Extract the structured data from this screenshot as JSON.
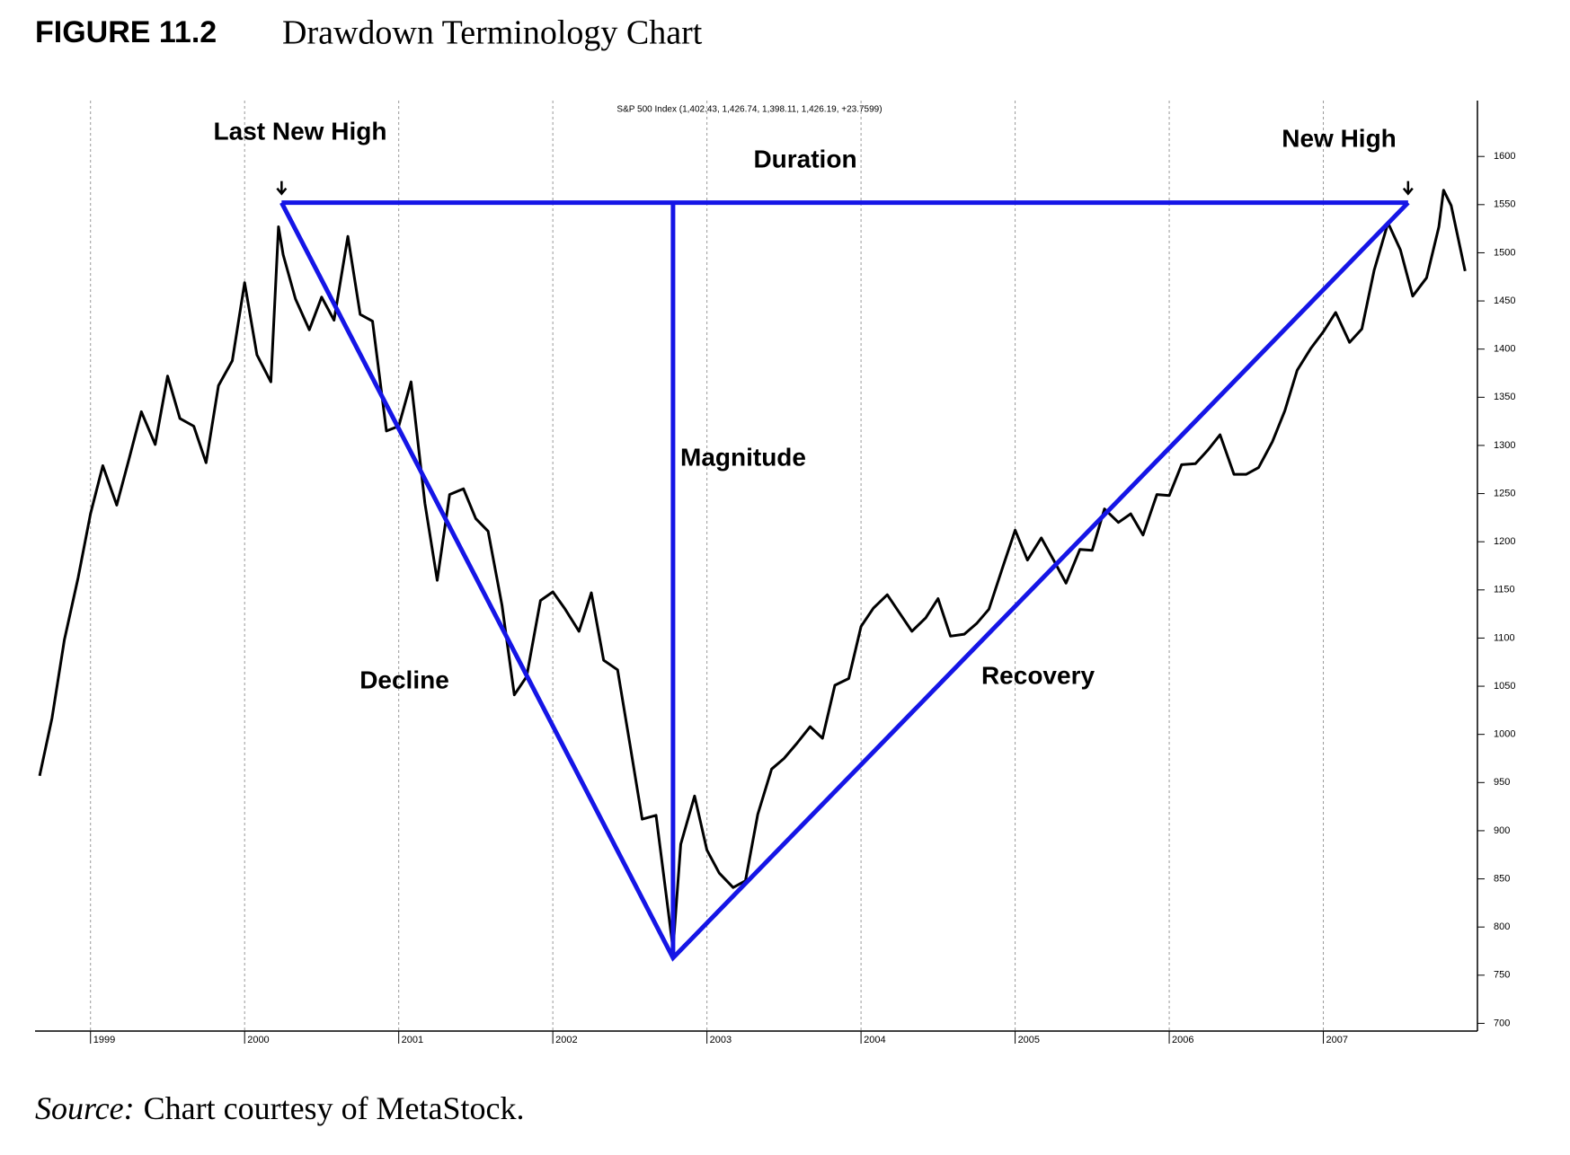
{
  "chart_data": {
    "type": "line",
    "figure_label": "FIGURE 11.2",
    "title": "Drawdown Terminology Chart",
    "subtitle": "S&P 500 Index  (1,402.43, 1,426.74, 1,398.11, 1,426.19, +23.7599)",
    "source_label": "Source:",
    "source_text": "Chart courtesy of MetaStock.",
    "annotations": [
      "Last New High",
      "Duration",
      "New High",
      "Magnitude",
      "Decline",
      "Recovery"
    ],
    "xlim": [
      1998.64,
      2008.0
    ],
    "xticks": [
      1999,
      2000,
      2001,
      2002,
      2003,
      2004,
      2005,
      2006,
      2007
    ],
    "ylim": [
      692,
      1658
    ],
    "yticks": [
      700,
      750,
      800,
      850,
      900,
      950,
      1000,
      1050,
      1100,
      1150,
      1200,
      1250,
      1300,
      1350,
      1400,
      1450,
      1500,
      1550,
      1600
    ],
    "grid": true,
    "x": [
      1998.67,
      1998.75,
      1998.83,
      1998.92,
      1999.0,
      1999.08,
      1999.17,
      1999.25,
      1999.33,
      1999.42,
      1999.5,
      1999.58,
      1999.67,
      1999.75,
      1999.83,
      1999.92,
      2000.0,
      2000.08,
      2000.17,
      2000.22,
      2000.25,
      2000.33,
      2000.42,
      2000.5,
      2000.58,
      2000.67,
      2000.75,
      2000.83,
      2000.92,
      2001.0,
      2001.08,
      2001.17,
      2001.25,
      2001.33,
      2001.42,
      2001.5,
      2001.58,
      2001.67,
      2001.75,
      2001.83,
      2001.92,
      2002.0,
      2002.08,
      2002.17,
      2002.25,
      2002.33,
      2002.42,
      2002.5,
      2002.58,
      2002.67,
      2002.75,
      2002.78,
      2002.83,
      2002.92,
      2003.0,
      2003.08,
      2003.17,
      2003.25,
      2003.33,
      2003.42,
      2003.5,
      2003.58,
      2003.67,
      2003.75,
      2003.83,
      2003.92,
      2004.0,
      2004.08,
      2004.17,
      2004.25,
      2004.33,
      2004.42,
      2004.5,
      2004.58,
      2004.67,
      2004.75,
      2004.83,
      2004.92,
      2005.0,
      2005.08,
      2005.17,
      2005.25,
      2005.33,
      2005.42,
      2005.5,
      2005.58,
      2005.67,
      2005.75,
      2005.83,
      2005.92,
      2006.0,
      2006.08,
      2006.17,
      2006.25,
      2006.33,
      2006.42,
      2006.5,
      2006.58,
      2006.67,
      2006.75,
      2006.83,
      2006.92,
      2007.0,
      2007.08,
      2007.17,
      2007.25,
      2007.33,
      2007.42,
      2007.5,
      2007.58,
      2007.67,
      2007.75,
      2007.78,
      2007.83,
      2007.92
    ],
    "series": [
      {
        "name": "S&P 500 Index",
        "color": "#000000",
        "values": [
          957,
          1017,
          1098,
          1163,
          1229,
          1279,
          1238,
          1286,
          1335,
          1301,
          1372,
          1328,
          1320,
          1282,
          1362,
          1388,
          1469,
          1394,
          1366,
          1527,
          1498,
          1452,
          1420,
          1454,
          1430,
          1517,
          1436,
          1429,
          1315,
          1320,
          1366,
          1240,
          1160,
          1249,
          1255,
          1224,
          1211,
          1134,
          1041,
          1060,
          1139,
          1148,
          1130,
          1107,
          1147,
          1077,
          1067,
          990,
          912,
          916,
          815,
          777,
          886,
          936,
          880,
          856,
          841,
          848,
          917,
          964,
          975,
          990,
          1008,
          996,
          1051,
          1058,
          1112,
          1131,
          1145,
          1126,
          1107,
          1121,
          1141,
          1102,
          1104,
          1115,
          1130,
          1174,
          1212,
          1181,
          1204,
          1181,
          1157,
          1192,
          1191,
          1234,
          1220,
          1229,
          1207,
          1249,
          1248,
          1280,
          1281,
          1295,
          1311,
          1270,
          1270,
          1277,
          1304,
          1336,
          1378,
          1401,
          1418,
          1438,
          1407,
          1421,
          1482,
          1531,
          1503,
          1455,
          1474,
          1527,
          1565,
          1549,
          1481
        ]
      }
    ],
    "drawdown": {
      "color": "#1515e6",
      "x": [
        2000.24,
        2002.78,
        2007.55
      ],
      "values": [
        1552,
        768,
        1552
      ]
    }
  }
}
